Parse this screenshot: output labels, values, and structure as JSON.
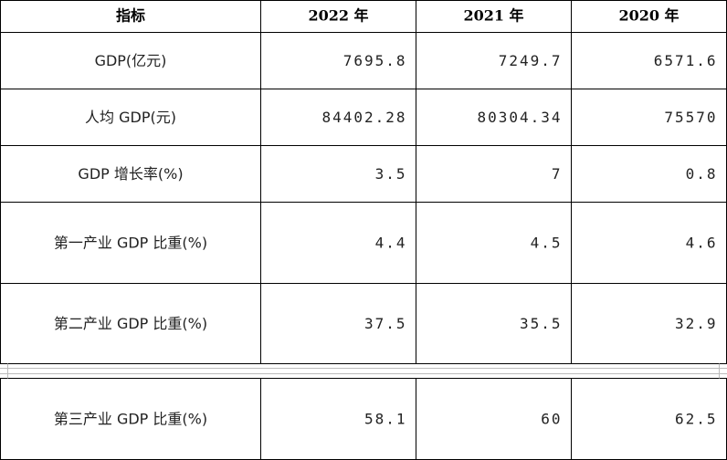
{
  "table": {
    "header": [
      "指标",
      "2022 年",
      "2021 年",
      "2020 年"
    ],
    "rows": [
      [
        "GDP(亿元)",
        "7695.8",
        "7249.7",
        "6571.6"
      ],
      [
        "人均 GDP(元)",
        "84402.28",
        "80304.34",
        "75570"
      ],
      [
        "GDP 增长率(%)",
        "3.5",
        "7",
        "0.8"
      ],
      [
        "第一产业 GDP 比重(%)",
        "4.4",
        "4.5",
        "4.6"
      ],
      [
        "第二产业 GDP 比重(%)",
        "37.5",
        "35.5",
        "32.9"
      ],
      [
        "第三产业 GDP 比重(%)",
        "58.1",
        "60",
        "62.5"
      ]
    ]
  }
}
